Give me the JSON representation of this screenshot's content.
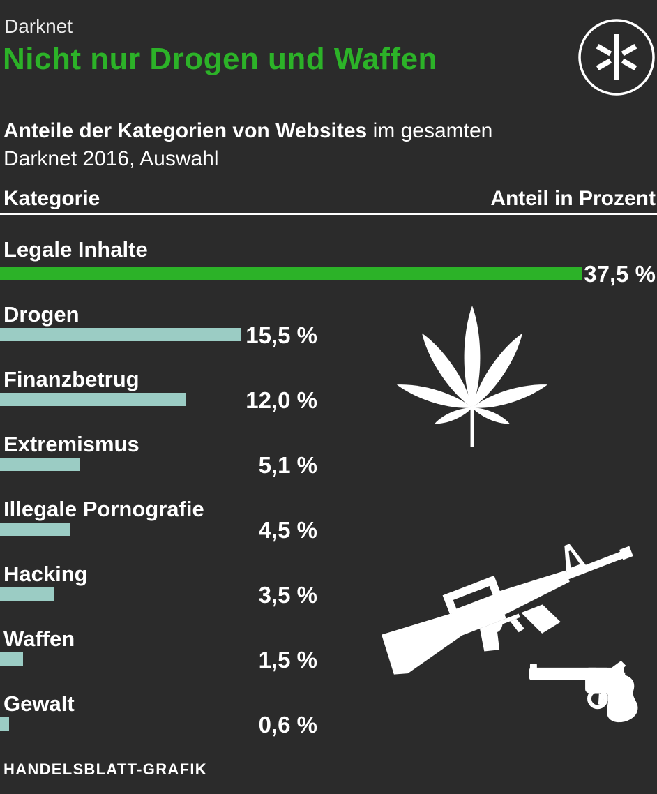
{
  "colors": {
    "background": "#2b2b2b",
    "accent_green": "#2cb228",
    "bar_teal": "#9bccc4",
    "text_white": "#ffffff",
    "kicker_gray": "#ececec"
  },
  "header": {
    "kicker": "Darknet",
    "title": "Nicht nur Drogen und Waffen",
    "badge_icon": "asterisk-in-circle-icon"
  },
  "subtitle": {
    "bold": "Anteile der Kategorien von Websites",
    "regular_tail": " im gesamten",
    "line2": "Darknet 2016, Auswahl"
  },
  "table_header": {
    "left": "Kategorie",
    "right": "Anteil in Prozent"
  },
  "chart_data": {
    "type": "bar",
    "orientation": "horizontal",
    "title": "Nicht nur Drogen und Waffen",
    "subtitle": "Anteile der Kategorien von Websites im gesamten Darknet 2016, Auswahl",
    "xlabel": "Anteil in Prozent",
    "ylabel": "Kategorie",
    "xlim": [
      0,
      37.5
    ],
    "grid": false,
    "legend": false,
    "categories": [
      "Legale Inhalte",
      "Drogen",
      "Finanzbetrug",
      "Extremismus",
      "Illegale Pornografie",
      "Hacking",
      "Waffen",
      "Gewalt"
    ],
    "values": [
      37.5,
      15.5,
      12.0,
      5.1,
      4.5,
      3.5,
      1.5,
      0.6
    ],
    "value_labels": [
      "37,5 %",
      "15,5 %",
      "12,0 %",
      "5,1 %",
      "4,5 %",
      "3,5 %",
      "1,5 %",
      "0,6 %"
    ],
    "highlight_index": 0,
    "bar_colors": {
      "highlight": "#2cb228",
      "default": "#9bccc4"
    }
  },
  "icons": {
    "badge": "asterisk-in-circle-icon",
    "drugs": "cannabis-leaf-icon",
    "weapons_rifle": "assault-rifle-icon",
    "weapons_revolver": "revolver-icon"
  },
  "footer": {
    "credit": "HANDELSBLATT-GRAFIK"
  }
}
